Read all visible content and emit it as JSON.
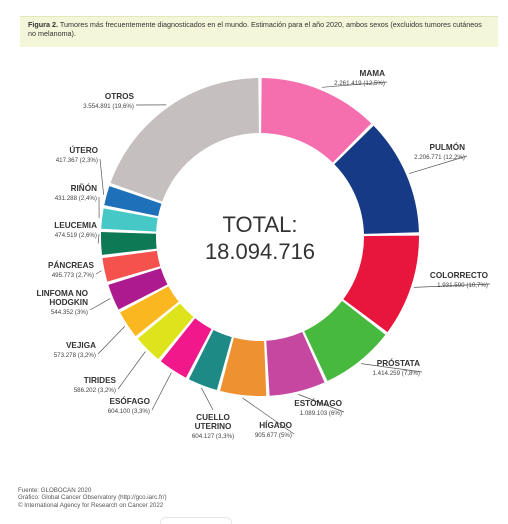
{
  "caption": {
    "label": "Figura 2.",
    "text": "Tumores más frecuentemente diagnosticados en el mundo. Estimación para el año 2020, ambos sexos (excluidos tumores cutáneos no melanoma)."
  },
  "center": {
    "title": "TOTAL:",
    "value": "18.094.716"
  },
  "chart_data": {
    "type": "pie",
    "donut": true,
    "total": 18094716,
    "slices": [
      {
        "name": "MAMA",
        "value": 2261419,
        "value_label": "2.261.419 (12,5%)",
        "color": "#f56fae"
      },
      {
        "name": "PULMÓN",
        "value": 2206771,
        "value_label": "2.206.771 (12,2%)",
        "color": "#173a86"
      },
      {
        "name": "COLORRECTO",
        "value": 1931590,
        "value_label": "1.931.590 (10,7%)",
        "color": "#e8153c"
      },
      {
        "name": "PRÓSTATA",
        "value": 1414259,
        "value_label": "1.414.259 (7,8%)",
        "color": "#46b93e"
      },
      {
        "name": "ESTÓMAGO",
        "value": 1089103,
        "value_label": "1.089.103 (6%)",
        "color": "#c6479f"
      },
      {
        "name": "HÍGADO",
        "value": 905677,
        "value_label": "905.677 (5%)",
        "color": "#ee9131"
      },
      {
        "name": "CUELLO UTERINO",
        "value": 604127,
        "value_label": "604.127 (3,3%)",
        "color": "#1e8a86"
      },
      {
        "name": "ESÓFAGO",
        "value": 604100,
        "value_label": "604.100 (3,3%)",
        "color": "#f0188a"
      },
      {
        "name": "TIRIDES",
        "value": 586202,
        "value_label": "586.202 (3,2%)",
        "color": "#dde41b"
      },
      {
        "name": "VEJIGA",
        "value": 573278,
        "value_label": "573.278 (3,2%)",
        "color": "#fbb720"
      },
      {
        "name": "LINFOMA NO HODGKIN",
        "value": 544352,
        "value_label": "544.352 (3%)",
        "color": "#ad1a8f"
      },
      {
        "name": "PÁNCREAS",
        "value": 495773,
        "value_label": "495.773 (2,7%)",
        "color": "#f5514d"
      },
      {
        "name": "LEUCEMIA",
        "value": 474519,
        "value_label": "474.519 (2,6%)",
        "color": "#0d7a55"
      },
      {
        "name": "RIÑÓN",
        "value": 431288,
        "value_label": "431.288 (2,4%)",
        "color": "#46c8c6"
      },
      {
        "name": "ÚTERO",
        "value": 417367,
        "value_label": "417.367 (2,3%)",
        "color": "#1e71b8"
      },
      {
        "name": "OTROS",
        "value": 3554891,
        "value_label": "3.554.891 (19,6%)",
        "color": "#c5bfbf"
      }
    ]
  },
  "footer": {
    "line1": "Fuente: GLOBOCAN 2020",
    "line2": "Gráfico: Global Cancer Observatory (http://gco.iarc.fr/)",
    "line3": "© International Agency for Research on Cancer 2022"
  }
}
